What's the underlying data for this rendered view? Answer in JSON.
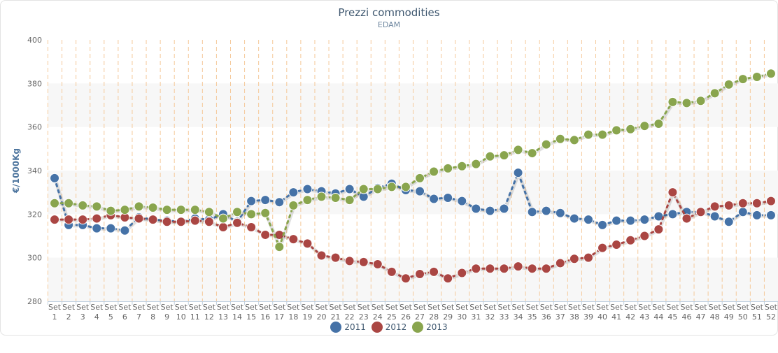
{
  "chart_data": {
    "type": "line",
    "title": "Prezzi commodities",
    "subtitle": "EDAM",
    "ylabel": "€/1000Kg",
    "xlabel": "",
    "ylim": [
      280,
      400
    ],
    "yticks": [
      280,
      300,
      320,
      340,
      360,
      380,
      400
    ],
    "x_prefix": "Set",
    "x": [
      1,
      2,
      3,
      4,
      5,
      6,
      7,
      8,
      9,
      10,
      11,
      12,
      13,
      14,
      15,
      16,
      17,
      18,
      19,
      20,
      21,
      22,
      23,
      24,
      25,
      26,
      27,
      28,
      29,
      30,
      31,
      32,
      33,
      34,
      35,
      36,
      37,
      38,
      39,
      40,
      41,
      42,
      43,
      44,
      45,
      46,
      47,
      48,
      49,
      50,
      51,
      52
    ],
    "grid": "alternating horizontal bands with dashed vertical week lines",
    "legend_position": "bottom-center",
    "series": [
      {
        "name": "2011",
        "color": "#4572a7",
        "values": [
          336.5,
          315,
          315,
          313.5,
          313.5,
          312.5,
          318.5,
          317.5,
          317,
          316.5,
          318,
          317.5,
          320,
          316.5,
          326,
          326.5,
          325.5,
          330,
          331.5,
          330.5,
          329.5,
          331.5,
          328,
          332,
          334,
          331,
          330.5,
          327,
          327.5,
          326,
          322.5,
          321.5,
          322.5,
          339,
          321,
          321.5,
          320.5,
          318,
          317.5,
          315,
          317,
          317,
          317.5,
          319,
          320,
          321,
          321,
          319,
          316.5,
          321,
          319.5,
          319.5
        ]
      },
      {
        "name": "2012",
        "color": "#aa4643",
        "values": [
          317.5,
          317.5,
          317.5,
          318,
          319.5,
          318.5,
          318,
          317.5,
          316.5,
          316.5,
          317,
          316.5,
          314,
          316,
          314,
          310.5,
          310.5,
          308.5,
          306.5,
          301,
          300,
          298.5,
          298,
          297,
          293.5,
          290.5,
          292.5,
          293.5,
          290.5,
          293,
          295,
          295,
          295,
          296,
          295,
          295,
          297.5,
          299.5,
          300,
          304.5,
          306,
          308,
          310,
          313,
          330,
          318,
          321,
          323.5,
          324,
          325,
          325,
          326
        ]
      },
      {
        "name": "2013",
        "color": "#89a54e",
        "values": [
          325,
          325,
          324,
          323.5,
          321.5,
          322,
          323.5,
          323,
          322,
          322,
          322,
          321,
          318,
          321,
          320,
          320.5,
          305,
          324,
          326.5,
          328,
          327.5,
          326.5,
          331.5,
          331.5,
          332.5,
          332.5,
          336.5,
          339.5,
          341,
          342,
          343,
          346.5,
          347,
          349.5,
          348,
          352,
          354.5,
          354,
          356.5,
          356.5,
          358.5,
          359,
          360.5,
          361.5,
          371.5,
          371,
          372,
          375.5,
          379.5,
          382,
          383,
          384.5
        ]
      }
    ]
  }
}
